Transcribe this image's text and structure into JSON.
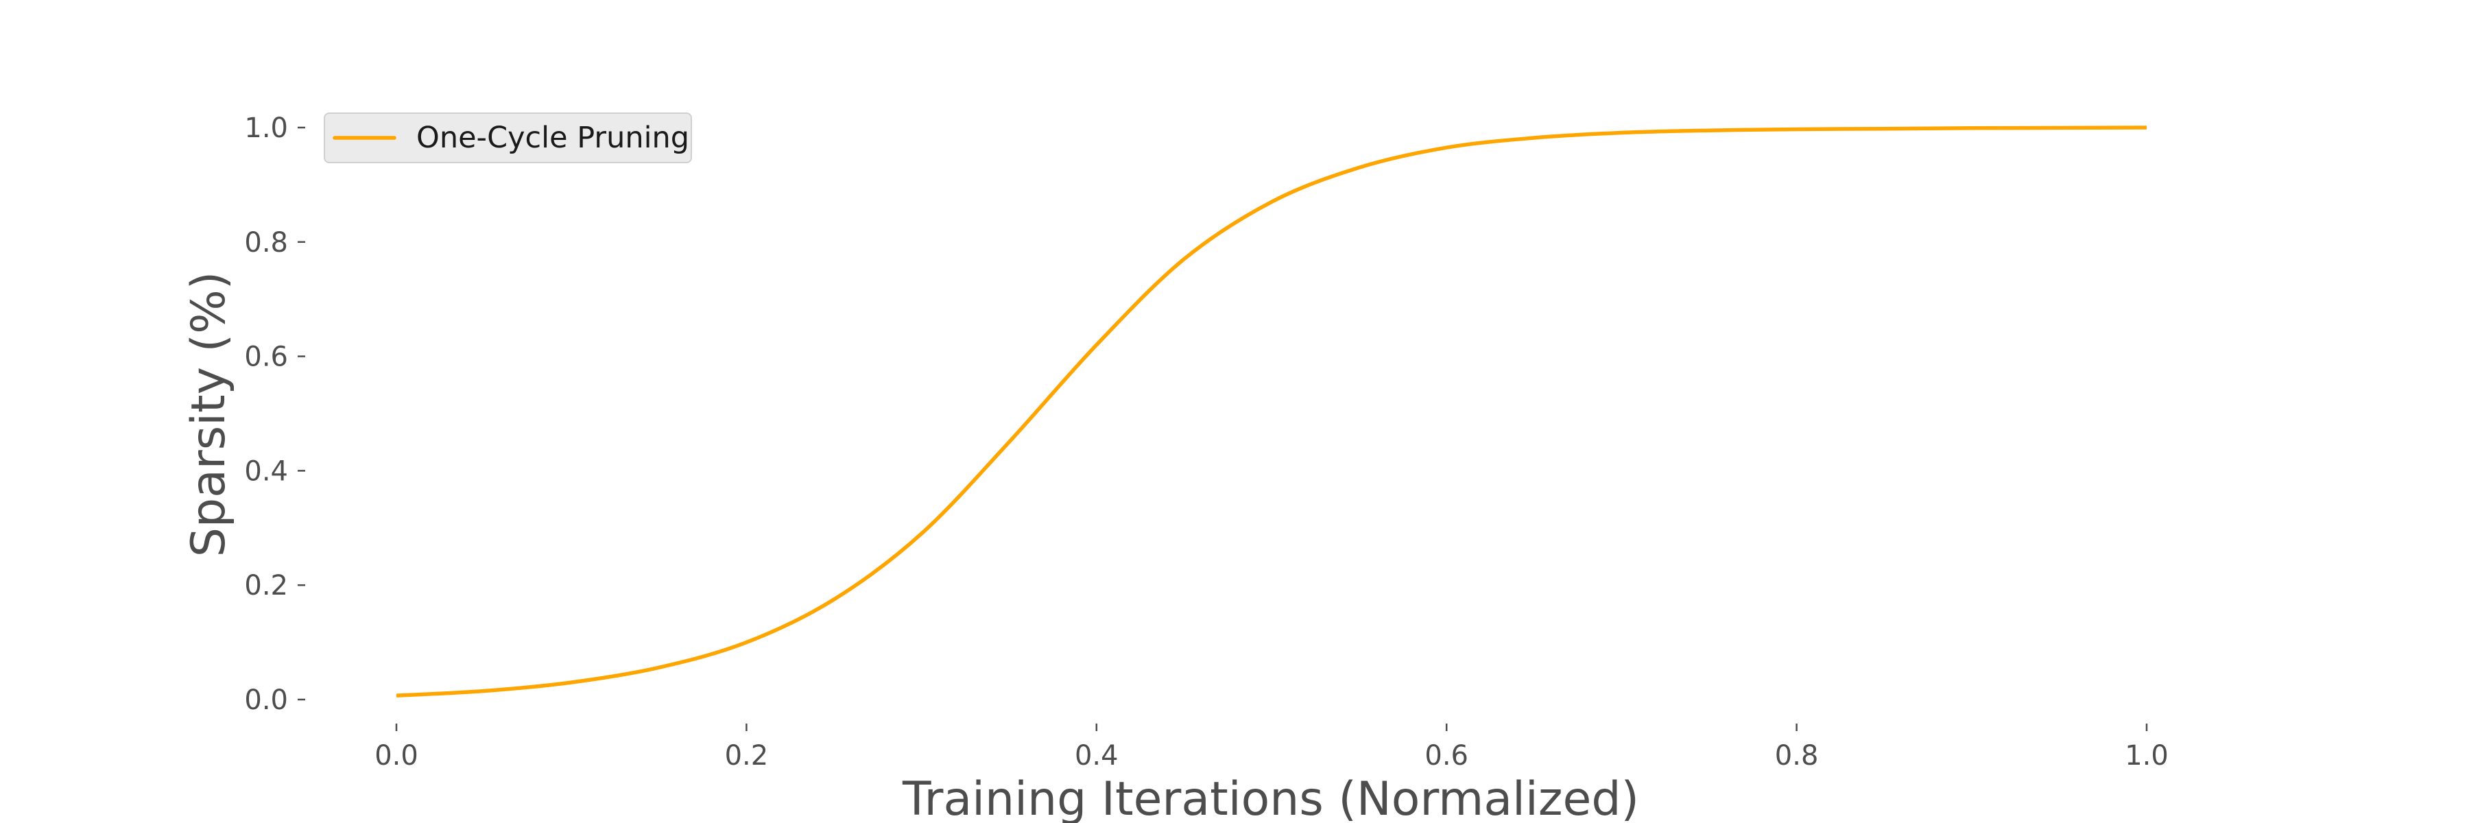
{
  "chart_data": {
    "type": "line",
    "title": "",
    "xlabel": "Training Iterations (Normalized)",
    "ylabel": "Sparsity (%)",
    "xlim": [
      -0.05,
      1.05
    ],
    "ylim": [
      -0.05,
      1.05
    ],
    "xticks": [
      0.0,
      0.2,
      0.4,
      0.6,
      0.8,
      1.0
    ],
    "xtick_labels": [
      "0.0",
      "0.2",
      "0.4",
      "0.6",
      "0.8",
      "1.0"
    ],
    "yticks": [
      0.0,
      0.2,
      0.4,
      0.6,
      0.8,
      1.0
    ],
    "ytick_labels": [
      "0.0",
      "0.2",
      "0.4",
      "0.6",
      "0.8",
      "1.0"
    ],
    "grid": false,
    "legend": {
      "placement": "top-left"
    },
    "series": [
      {
        "name": "One-Cycle Pruning",
        "color": "#ffa500",
        "x": [
          0.0,
          0.05,
          0.1,
          0.15,
          0.2,
          0.25,
          0.3,
          0.35,
          0.4,
          0.45,
          0.5,
          0.55,
          0.6,
          0.65,
          0.7,
          0.75,
          0.8,
          0.85,
          0.9,
          0.95,
          1.0
        ],
        "y": [
          0.007,
          0.015,
          0.03,
          0.056,
          0.1,
          0.175,
          0.29,
          0.45,
          0.62,
          0.77,
          0.87,
          0.93,
          0.965,
          0.982,
          0.991,
          0.995,
          0.997,
          0.998,
          0.999,
          0.9995,
          1.0
        ]
      }
    ]
  }
}
